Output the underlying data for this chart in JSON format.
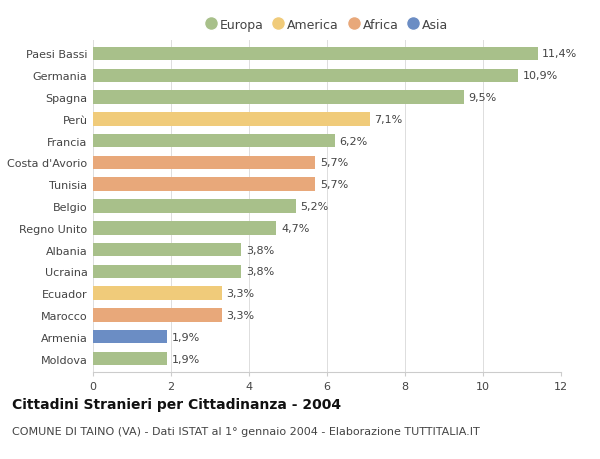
{
  "categories": [
    "Moldova",
    "Armenia",
    "Marocco",
    "Ecuador",
    "Ucraina",
    "Albania",
    "Regno Unito",
    "Belgio",
    "Tunisia",
    "Costa d'Avorio",
    "Francia",
    "Perù",
    "Spagna",
    "Germania",
    "Paesi Bassi"
  ],
  "values": [
    1.9,
    1.9,
    3.3,
    3.3,
    3.8,
    3.8,
    4.7,
    5.2,
    5.7,
    5.7,
    6.2,
    7.1,
    9.5,
    10.9,
    11.4
  ],
  "labels": [
    "1,9%",
    "1,9%",
    "3,3%",
    "3,3%",
    "3,8%",
    "3,8%",
    "4,7%",
    "5,2%",
    "5,7%",
    "5,7%",
    "6,2%",
    "7,1%",
    "9,5%",
    "10,9%",
    "11,4%"
  ],
  "colors": [
    "#a8c08a",
    "#6b8dc4",
    "#e8a87a",
    "#f0cb7a",
    "#a8c08a",
    "#a8c08a",
    "#a8c08a",
    "#a8c08a",
    "#e8a87a",
    "#e8a87a",
    "#a8c08a",
    "#f0cb7a",
    "#a8c08a",
    "#a8c08a",
    "#a8c08a"
  ],
  "legend_labels": [
    "Europa",
    "America",
    "Africa",
    "Asia"
  ],
  "legend_colors": [
    "#a8c08a",
    "#f0cb7a",
    "#e8a87a",
    "#6b8dc4"
  ],
  "title": "Cittadini Stranieri per Cittadinanza - 2004",
  "subtitle": "COMUNE DI TAINO (VA) - Dati ISTAT al 1° gennaio 2004 - Elaborazione TUTTITALIA.IT",
  "xlim": [
    0,
    12
  ],
  "xticks": [
    0,
    2,
    4,
    6,
    8,
    10,
    12
  ],
  "background_color": "#ffffff",
  "bar_height": 0.62,
  "title_fontsize": 10,
  "subtitle_fontsize": 8,
  "label_fontsize": 8,
  "tick_fontsize": 8,
  "legend_fontsize": 9
}
